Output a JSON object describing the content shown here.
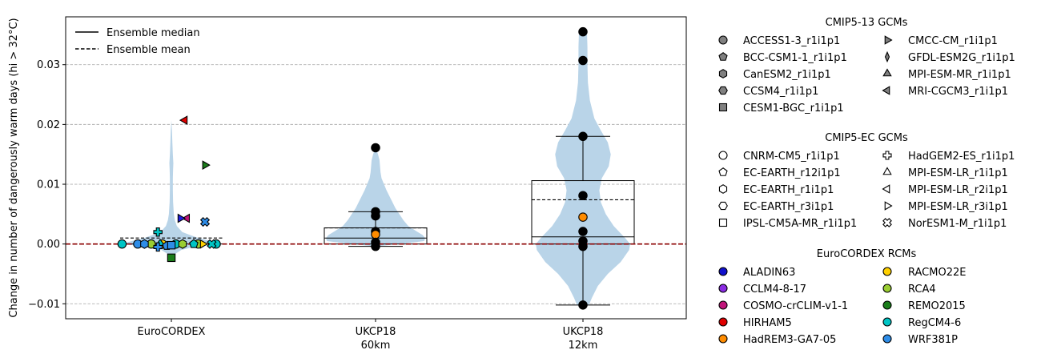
{
  "chart_data": {
    "type": "violin",
    "ylabel": "Change in number of dangerously warm days (hi > 32°C)",
    "ylim": [
      -0.0125,
      0.038
    ],
    "yticks": [
      -0.01,
      0.0,
      0.01,
      0.02,
      0.03
    ],
    "yticklabels": [
      "−0.01",
      "0.00",
      "0.01",
      "0.02",
      "0.03"
    ],
    "grid": "y-dashed",
    "zero_line_color": "#8b0000",
    "violin_color": "#b9d4e8",
    "categories": [
      {
        "label": "EuroCORDEX",
        "sublabel": ""
      },
      {
        "label": "UKCP18",
        "sublabel": "60km"
      },
      {
        "label": "UKCP18",
        "sublabel": "12km"
      }
    ],
    "legend_main": {
      "position": "upper-left",
      "items": [
        {
          "label": "Ensemble median",
          "style": "solid"
        },
        {
          "label": "Ensemble mean",
          "style": "dashed"
        }
      ]
    },
    "violins": [
      {
        "min": -0.0023,
        "max": 0.0207,
        "median": 0.0,
        "mean": 0.001,
        "box": null,
        "profile": [
          [
            -0.0023,
            0.0
          ],
          [
            -0.0018,
            0.05
          ],
          [
            -0.001,
            0.2
          ],
          [
            -0.0005,
            0.45
          ],
          [
            0.0,
            1.0
          ],
          [
            0.0005,
            0.8
          ],
          [
            0.001,
            0.55
          ],
          [
            0.0015,
            0.38
          ],
          [
            0.002,
            0.22
          ],
          [
            0.003,
            0.11
          ],
          [
            0.004,
            0.07
          ],
          [
            0.005,
            0.05
          ],
          [
            0.007,
            0.035
          ],
          [
            0.009,
            0.03
          ],
          [
            0.011,
            0.03
          ],
          [
            0.0125,
            0.035
          ],
          [
            0.0135,
            0.04
          ],
          [
            0.015,
            0.03
          ],
          [
            0.017,
            0.02
          ],
          [
            0.019,
            0.012
          ],
          [
            0.0207,
            0.0
          ]
        ]
      },
      {
        "min": -0.0004,
        "max": 0.0161,
        "median": 0.001,
        "mean": 0.0027,
        "box": [
          0.0,
          0.0027
        ],
        "whiskers": [
          -0.0004,
          0.0054
        ],
        "profile": [
          [
            -0.0004,
            0.0
          ],
          [
            0.0,
            0.5
          ],
          [
            0.0005,
            0.98
          ],
          [
            0.001,
            1.0
          ],
          [
            0.0015,
            0.95
          ],
          [
            0.002,
            0.85
          ],
          [
            0.003,
            0.66
          ],
          [
            0.004,
            0.56
          ],
          [
            0.005,
            0.48
          ],
          [
            0.006,
            0.4
          ],
          [
            0.007,
            0.34
          ],
          [
            0.008,
            0.28
          ],
          [
            0.009,
            0.22
          ],
          [
            0.01,
            0.17
          ],
          [
            0.011,
            0.12
          ],
          [
            0.012,
            0.1
          ],
          [
            0.013,
            0.09
          ],
          [
            0.014,
            0.08
          ],
          [
            0.015,
            0.05
          ],
          [
            0.0161,
            0.0
          ]
        ]
      },
      {
        "min": -0.0102,
        "max": 0.0355,
        "median": 0.0012,
        "mean": 0.0074,
        "box": [
          0.0,
          0.0106
        ],
        "whiskers": [
          -0.0102,
          0.018
        ],
        "profile": [
          [
            -0.0102,
            0.12
          ],
          [
            -0.009,
            0.18
          ],
          [
            -0.007,
            0.3
          ],
          [
            -0.005,
            0.5
          ],
          [
            -0.003,
            0.76
          ],
          [
            -0.001,
            0.93
          ],
          [
            0.0,
            0.95
          ],
          [
            0.001,
            0.85
          ],
          [
            0.003,
            0.62
          ],
          [
            0.005,
            0.46
          ],
          [
            0.007,
            0.36
          ],
          [
            0.009,
            0.33
          ],
          [
            0.011,
            0.38
          ],
          [
            0.013,
            0.52
          ],
          [
            0.015,
            0.56
          ],
          [
            0.017,
            0.5
          ],
          [
            0.019,
            0.36
          ],
          [
            0.021,
            0.23
          ],
          [
            0.024,
            0.14
          ],
          [
            0.027,
            0.1
          ],
          [
            0.03,
            0.09
          ],
          [
            0.033,
            0.09
          ],
          [
            0.0355,
            0.08
          ]
        ]
      }
    ],
    "points": {
      "eurocordex": [
        {
          "x": -0.22,
          "y": 0.0,
          "marker": "circle",
          "color": "#00c5c5"
        },
        {
          "x": -0.15,
          "y": 0.0,
          "marker": "circle",
          "color": "#2e8de8"
        },
        {
          "x": -0.09,
          "y": 0.0,
          "marker": "circle",
          "color": "#9acd32"
        },
        {
          "x": -0.04,
          "y": 0.0,
          "marker": "circle",
          "color": "#ffd000"
        },
        {
          "x": 0.02,
          "y": 0.0,
          "marker": "circle",
          "color": "#00c5c5"
        },
        {
          "x": 0.12,
          "y": 0.0,
          "marker": "circle",
          "color": "#9acd32"
        },
        {
          "x": 0.2,
          "y": 0.0,
          "marker": "circle",
          "color": "#00c5c5"
        },
        {
          "x": -0.12,
          "y": 0.0,
          "marker": "hexagon",
          "color": "#2e8de8"
        },
        {
          "x": 0.05,
          "y": 0.0,
          "marker": "hexagon",
          "color": "#9acd32"
        },
        {
          "x": 0.1,
          "y": 0.0,
          "marker": "pentagon",
          "color": "#00c5c5"
        },
        {
          "x": -0.05,
          "y": 0.0,
          "marker": "diamond",
          "color": "#00c5c5"
        },
        {
          "x": -0.02,
          "y": -0.0003,
          "marker": "pentagon",
          "color": "#2e8de8"
        },
        {
          "x": 0.0,
          "y": -0.0002,
          "marker": "square",
          "color": "#2e8de8"
        },
        {
          "x": -0.06,
          "y": -0.0005,
          "marker": "plus",
          "color": "#2e8de8"
        },
        {
          "x": -0.06,
          "y": 0.002,
          "marker": "plus",
          "color": "#00c5c5"
        },
        {
          "x": 0.14,
          "y": 0.0,
          "marker": "tri-right",
          "color": "#ffd000"
        },
        {
          "x": 0.18,
          "y": 0.0,
          "marker": "xcross",
          "color": "#00c5c5"
        },
        {
          "x": 0.0,
          "y": -0.0023,
          "marker": "square",
          "color": "#1a7d1a"
        },
        {
          "x": 0.15,
          "y": 0.0037,
          "marker": "xcross",
          "color": "#2e8de8"
        },
        {
          "x": 0.07,
          "y": 0.0043,
          "marker": "tri-left",
          "color": "#c0147a"
        },
        {
          "x": 0.04,
          "y": 0.0043,
          "marker": "tri-right",
          "color": "#1e1edd"
        },
        {
          "x": 0.15,
          "y": 0.0132,
          "marker": "tri-right",
          "color": "#1a7d1a"
        },
        {
          "x": 0.06,
          "y": 0.0207,
          "marker": "tri-left",
          "color": "#e00000"
        }
      ],
      "ukcp60": [
        {
          "x": 0.0,
          "y": 0.0161,
          "color": "#000000"
        },
        {
          "x": 0.0,
          "y": 0.0054,
          "color": "#000000"
        },
        {
          "x": 0.0,
          "y": 0.0047,
          "color": "#000000"
        },
        {
          "x": 0.0,
          "y": 0.0021,
          "color": "#000000"
        },
        {
          "x": 0.0,
          "y": 0.0016,
          "color": "#ff8c00"
        },
        {
          "x": 0.0,
          "y": 0.0003,
          "color": "#000000"
        },
        {
          "x": 0.0,
          "y": -0.0004,
          "color": "#000000"
        }
      ],
      "ukcp12": [
        {
          "x": 0.0,
          "y": 0.0355,
          "color": "#000000"
        },
        {
          "x": 0.0,
          "y": 0.0307,
          "color": "#000000"
        },
        {
          "x": 0.0,
          "y": 0.018,
          "color": "#000000"
        },
        {
          "x": 0.0,
          "y": 0.0081,
          "color": "#000000"
        },
        {
          "x": 0.0,
          "y": 0.0045,
          "color": "#ff8c00"
        },
        {
          "x": 0.0,
          "y": 0.0021,
          "color": "#000000"
        },
        {
          "x": 0.0,
          "y": 0.0005,
          "color": "#000000"
        },
        {
          "x": 0.0,
          "y": -0.0004,
          "color": "#000000"
        },
        {
          "x": 0.0,
          "y": -0.0102,
          "color": "#000000"
        }
      ]
    },
    "side_legends": [
      {
        "title": "CMIP5-13 GCMs",
        "columns": [
          [
            {
              "label": "ACCESS1-3_r1i1p1",
              "marker": "circle",
              "fill": "#808080"
            },
            {
              "label": "BCC-CSM1-1_r1i1p1",
              "marker": "pentagon",
              "fill": "#808080"
            },
            {
              "label": "CanESM2_r1i1p1",
              "marker": "hexagon",
              "fill": "#808080"
            },
            {
              "label": "CCSM4_r1i1p1",
              "marker": "hexagon2",
              "fill": "#808080"
            },
            {
              "label": "CESM1-BGC_r1i1p1",
              "marker": "square",
              "fill": "#808080"
            }
          ],
          [
            {
              "label": "CMCC-CM_r1i1p1",
              "marker": "tri-right",
              "fill": "#808080"
            },
            {
              "label": "GFDL-ESM2G_r1i1p1",
              "marker": "thin-diamond",
              "fill": "#808080"
            },
            {
              "label": "MPI-ESM-MR_r1i1p1",
              "marker": "tri-up",
              "fill": "#808080"
            },
            {
              "label": "MRI-CGCM3_r1i1p1",
              "marker": "tri-left",
              "fill": "#808080"
            }
          ]
        ]
      },
      {
        "title": "CMIP5-EC GCMs",
        "columns": [
          [
            {
              "label": "CNRM-CM5_r1i1p1",
              "marker": "circle",
              "fill": "#ffffff"
            },
            {
              "label": "EC-EARTH_r12i1p1",
              "marker": "pentagon",
              "fill": "#ffffff"
            },
            {
              "label": "EC-EARTH_r1i1p1",
              "marker": "hexagon",
              "fill": "#ffffff"
            },
            {
              "label": "EC-EARTH_r3i1p1",
              "marker": "hexagon2",
              "fill": "#ffffff"
            },
            {
              "label": "IPSL-CM5A-MR_r1i1p1",
              "marker": "square",
              "fill": "#ffffff"
            }
          ],
          [
            {
              "label": "HadGEM2-ES_r1i1p1",
              "marker": "plus",
              "fill": "#ffffff"
            },
            {
              "label": "MPI-ESM-LR_r1i1p1",
              "marker": "tri-up",
              "fill": "#ffffff"
            },
            {
              "label": "MPI-ESM-LR_r2i1p1",
              "marker": "tri-left",
              "fill": "#ffffff"
            },
            {
              "label": "MPI-ESM-LR_r3i1p1",
              "marker": "tri-right",
              "fill": "#ffffff"
            },
            {
              "label": "NorESM1-M_r1i1p1",
              "marker": "xcross",
              "fill": "#ffffff"
            }
          ]
        ]
      },
      {
        "title": "EuroCORDEX RCMs",
        "columns": [
          [
            {
              "label": "ALADIN63",
              "marker": "circle",
              "fill": "#1010cc"
            },
            {
              "label": "CCLM4-8-17",
              "marker": "circle",
              "fill": "#8a2be2"
            },
            {
              "label": "COSMO-crCLIM-v1-1",
              "marker": "circle",
              "fill": "#c0147a"
            },
            {
              "label": "HIRHAM5",
              "marker": "circle",
              "fill": "#e00000"
            },
            {
              "label": "HadREM3-GA7-05",
              "marker": "circle",
              "fill": "#ff8c00"
            }
          ],
          [
            {
              "label": "RACMO22E",
              "marker": "circle",
              "fill": "#ffd000"
            },
            {
              "label": "RCA4",
              "marker": "circle",
              "fill": "#9acd32"
            },
            {
              "label": "REMO2015",
              "marker": "circle",
              "fill": "#1a7d1a"
            },
            {
              "label": "RegCM4-6",
              "marker": "circle",
              "fill": "#00c5c5"
            },
            {
              "label": "WRF381P",
              "marker": "circle",
              "fill": "#2e8de8"
            }
          ]
        ]
      }
    ]
  }
}
